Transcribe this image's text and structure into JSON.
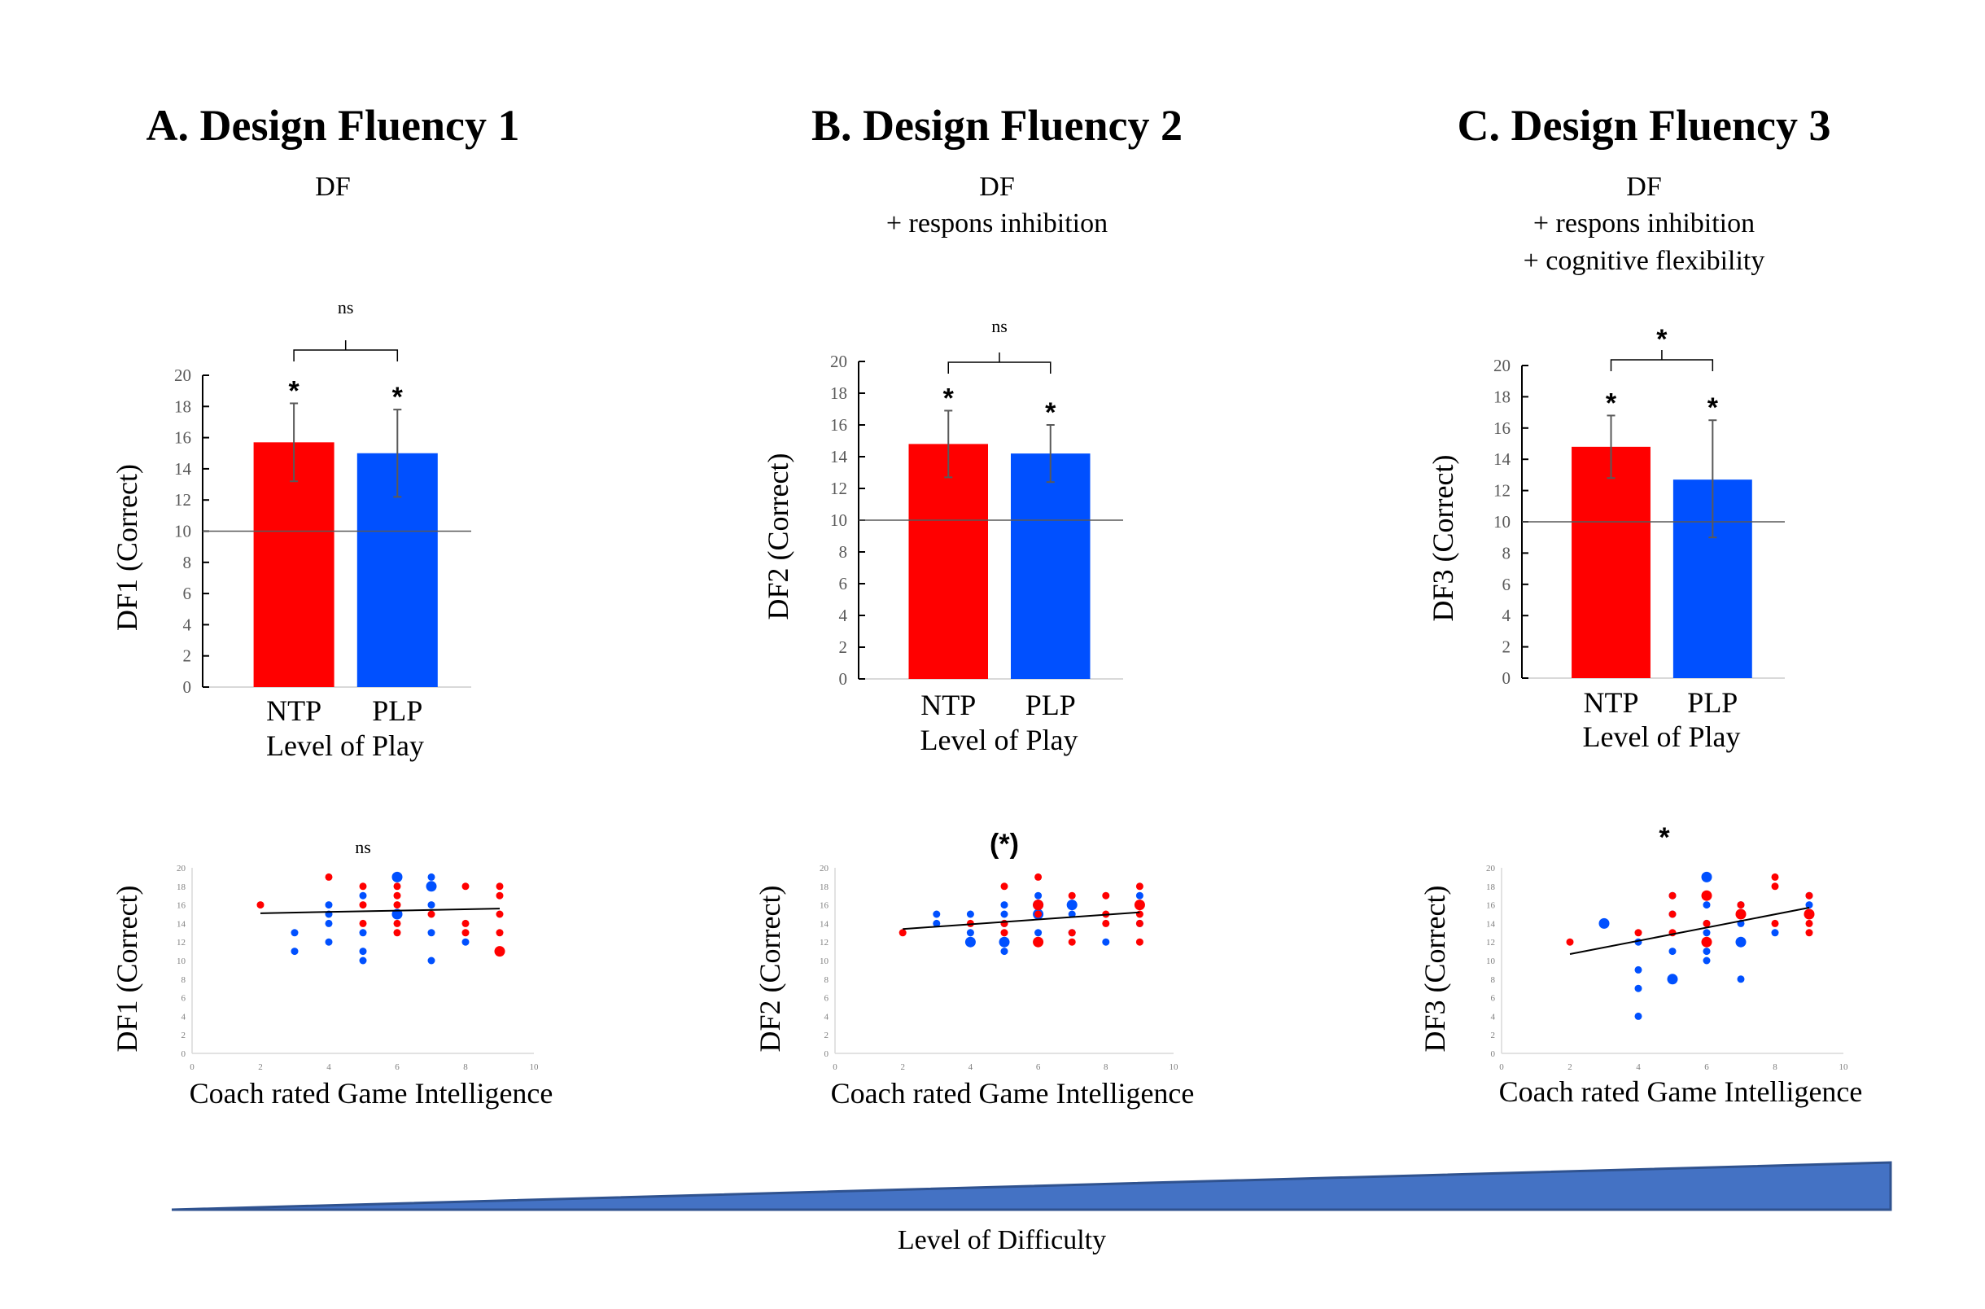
{
  "colors": {
    "ntp": "#ff0000",
    "plp": "#0050ff",
    "axis": "#000000",
    "error_bar": "#595959",
    "reference_line": "#595959",
    "trend_line": "#000000",
    "wedge_fill": "#4472c4",
    "wedge_stroke": "#2f528f"
  },
  "panels": [
    {
      "id": "A",
      "title": "A.  Design Fluency 1",
      "subtitle_lines": [
        "DF"
      ],
      "bar_significance": "ns",
      "scatter_significance": "ns"
    },
    {
      "id": "B",
      "title": "B. Design Fluency  2",
      "subtitle_lines": [
        "DF",
        "+ respons inhibition"
      ],
      "bar_significance": "ns",
      "scatter_significance": "(*)"
    },
    {
      "id": "C",
      "title": "C. Design Fluency 3",
      "subtitle_lines": [
        "DF",
        "+ respons inhibition",
        "+ cognitive flexibility"
      ],
      "bar_significance": "*",
      "scatter_significance": "*"
    }
  ],
  "difficulty_label": "Level of Difficulty",
  "chart_data": [
    {
      "type": "bar",
      "panel": "A",
      "title": "A.  Design Fluency 1",
      "categories": [
        "NTP",
        "PLP"
      ],
      "values": [
        15.7,
        15.0
      ],
      "error_low": [
        13.2,
        12.2
      ],
      "error_high": [
        18.2,
        17.8
      ],
      "bar_markers": [
        "*",
        "*"
      ],
      "comparison_label": "ns",
      "reference_line": 10,
      "xlabel": "Level of Play",
      "ylabel": "DF1 (Correct)",
      "ylim": [
        0,
        20
      ],
      "yticks": [
        0,
        2,
        4,
        6,
        8,
        10,
        12,
        14,
        16,
        18,
        20
      ]
    },
    {
      "type": "bar",
      "panel": "B",
      "title": "B. Design Fluency  2",
      "categories": [
        "NTP",
        "PLP"
      ],
      "values": [
        14.8,
        14.2
      ],
      "error_low": [
        12.7,
        12.4
      ],
      "error_high": [
        16.9,
        16.0
      ],
      "bar_markers": [
        "*",
        "*"
      ],
      "comparison_label": "ns",
      "reference_line": 10,
      "xlabel": "Level of Play",
      "ylabel": "DF2 (Correct)",
      "ylim": [
        0,
        20
      ],
      "yticks": [
        0,
        2,
        4,
        6,
        8,
        10,
        12,
        14,
        16,
        18,
        20
      ]
    },
    {
      "type": "bar",
      "panel": "C",
      "title": "C. Design Fluency 3",
      "categories": [
        "NTP",
        "PLP"
      ],
      "values": [
        14.8,
        12.7
      ],
      "error_low": [
        12.8,
        9.0
      ],
      "error_high": [
        16.8,
        16.5
      ],
      "bar_markers": [
        "*",
        "*"
      ],
      "comparison_label": "*",
      "reference_line": 10,
      "xlabel": "Level of Play",
      "ylabel": "DF3 (Correct)",
      "ylim": [
        0,
        20
      ],
      "yticks": [
        0,
        2,
        4,
        6,
        8,
        10,
        12,
        14,
        16,
        18,
        20
      ]
    },
    {
      "type": "scatter",
      "panel": "A",
      "significance": "ns",
      "xlabel": "Coach rated Game Intelligence",
      "ylabel": "DF1 (Correct)",
      "xlim": [
        0,
        10
      ],
      "ylim": [
        0,
        20
      ],
      "xticks": [
        0,
        2,
        4,
        6,
        8,
        10
      ],
      "yticks": [
        0,
        2,
        4,
        6,
        8,
        10,
        12,
        14,
        16,
        18,
        20
      ],
      "trend": {
        "x": [
          2,
          9
        ],
        "y": [
          15.1,
          15.6
        ]
      },
      "series": [
        {
          "name": "NTP",
          "color": "#ff0000",
          "points": [
            [
              2,
              16,
              1
            ],
            [
              4,
              19,
              1
            ],
            [
              5,
              18,
              1
            ],
            [
              5,
              16,
              1
            ],
            [
              5,
              14,
              1
            ],
            [
              6,
              19,
              1
            ],
            [
              6,
              18,
              1
            ],
            [
              6,
              17,
              1
            ],
            [
              6,
              16,
              1
            ],
            [
              6,
              14,
              1
            ],
            [
              6,
              13,
              1
            ],
            [
              7,
              18,
              1
            ],
            [
              7,
              15,
              1
            ],
            [
              8,
              18,
              1
            ],
            [
              8,
              14,
              1
            ],
            [
              8,
              13,
              1
            ],
            [
              9,
              18,
              1
            ],
            [
              9,
              17,
              1
            ],
            [
              9,
              15,
              1
            ],
            [
              9,
              13,
              1
            ],
            [
              9,
              11,
              2
            ]
          ]
        },
        {
          "name": "PLP",
          "color": "#0050ff",
          "points": [
            [
              3,
              13,
              1
            ],
            [
              3,
              11,
              1
            ],
            [
              4,
              16,
              1
            ],
            [
              4,
              15,
              1
            ],
            [
              4,
              14,
              1
            ],
            [
              4,
              12,
              1
            ],
            [
              5,
              17,
              1
            ],
            [
              5,
              13,
              1
            ],
            [
              5,
              11,
              1
            ],
            [
              5,
              10,
              1
            ],
            [
              6,
              19,
              2
            ],
            [
              6,
              15,
              2
            ],
            [
              7,
              19,
              1
            ],
            [
              7,
              18,
              2
            ],
            [
              7,
              16,
              1
            ],
            [
              7,
              13,
              1
            ],
            [
              7,
              10,
              1
            ],
            [
              8,
              12,
              1
            ]
          ]
        }
      ]
    },
    {
      "type": "scatter",
      "panel": "B",
      "significance": "(*)",
      "xlabel": "Coach rated Game Intelligence",
      "ylabel": "DF2 (Correct)",
      "xlim": [
        0,
        10
      ],
      "ylim": [
        0,
        20
      ],
      "xticks": [
        0,
        2,
        4,
        6,
        8,
        10
      ],
      "yticks": [
        0,
        2,
        4,
        6,
        8,
        10,
        12,
        14,
        16,
        18,
        20
      ],
      "trend": {
        "x": [
          2,
          9
        ],
        "y": [
          13.4,
          15.2
        ]
      },
      "series": [
        {
          "name": "PLP",
          "color": "#0050ff",
          "points": [
            [
              3,
              15,
              1
            ],
            [
              3,
              14,
              1
            ],
            [
              4,
              15,
              1
            ],
            [
              4,
              13,
              1
            ],
            [
              4,
              12,
              2
            ],
            [
              5,
              16,
              1
            ],
            [
              5,
              15,
              1
            ],
            [
              5,
              14,
              1
            ],
            [
              5,
              12,
              2
            ],
            [
              5,
              11,
              1
            ],
            [
              6,
              17,
              1
            ],
            [
              6,
              16,
              2
            ],
            [
              6,
              15,
              2
            ],
            [
              6,
              13,
              1
            ],
            [
              7,
              16,
              2
            ],
            [
              7,
              15,
              1
            ],
            [
              7,
              13,
              1
            ],
            [
              8,
              12,
              1
            ],
            [
              9,
              17,
              1
            ],
            [
              9,
              14,
              1
            ]
          ]
        },
        {
          "name": "NTP",
          "color": "#ff0000",
          "points": [
            [
              2,
              13,
              1
            ],
            [
              4,
              14,
              1
            ],
            [
              5,
              18,
              1
            ],
            [
              5,
              14,
              1
            ],
            [
              5,
              13,
              1
            ],
            [
              6,
              19,
              1
            ],
            [
              6,
              16,
              2
            ],
            [
              6,
              15,
              1
            ],
            [
              6,
              12,
              2
            ],
            [
              7,
              17,
              1
            ],
            [
              7,
              13,
              1
            ],
            [
              7,
              12,
              1
            ],
            [
              8,
              17,
              1
            ],
            [
              8,
              15,
              1
            ],
            [
              8,
              14,
              1
            ],
            [
              9,
              18,
              1
            ],
            [
              9,
              16,
              2
            ],
            [
              9,
              15,
              1
            ],
            [
              9,
              14,
              1
            ],
            [
              9,
              12,
              1
            ]
          ]
        }
      ]
    },
    {
      "type": "scatter",
      "panel": "C",
      "significance": "*",
      "xlabel": "Coach rated Game Intelligence",
      "ylabel": "DF3 (Correct)",
      "xlim": [
        0,
        10
      ],
      "ylim": [
        0,
        20
      ],
      "xticks": [
        0,
        2,
        4,
        6,
        8,
        10
      ],
      "yticks": [
        0,
        2,
        4,
        6,
        8,
        10,
        12,
        14,
        16,
        18,
        20
      ],
      "trend": {
        "x": [
          2,
          9
        ],
        "y": [
          10.7,
          15.7
        ]
      },
      "series": [
        {
          "name": "PLP",
          "color": "#0050ff",
          "points": [
            [
              3,
              14,
              2
            ],
            [
              4,
              12,
              1
            ],
            [
              4,
              9,
              1
            ],
            [
              4,
              7,
              1
            ],
            [
              4,
              4,
              1
            ],
            [
              5,
              17,
              1
            ],
            [
              5,
              15,
              1
            ],
            [
              5,
              11,
              1
            ],
            [
              5,
              8,
              2
            ],
            [
              6,
              19,
              2
            ],
            [
              6,
              17,
              1
            ],
            [
              6,
              16,
              1
            ],
            [
              6,
              14,
              1
            ],
            [
              6,
              13,
              1
            ],
            [
              6,
              12,
              1
            ],
            [
              6,
              11,
              1
            ],
            [
              6,
              10,
              1
            ],
            [
              7,
              16,
              1
            ],
            [
              7,
              14,
              1
            ],
            [
              7,
              12,
              2
            ],
            [
              7,
              8,
              1
            ],
            [
              8,
              13,
              1
            ],
            [
              9,
              17,
              1
            ],
            [
              9,
              16,
              1
            ]
          ]
        },
        {
          "name": "NTP",
          "color": "#ff0000",
          "points": [
            [
              2,
              12,
              1
            ],
            [
              4,
              13,
              1
            ],
            [
              5,
              17,
              1
            ],
            [
              5,
              15,
              1
            ],
            [
              5,
              13,
              1
            ],
            [
              6,
              17,
              2
            ],
            [
              6,
              14,
              1
            ],
            [
              6,
              12,
              2
            ],
            [
              7,
              16,
              1
            ],
            [
              7,
              15,
              2
            ],
            [
              8,
              19,
              1
            ],
            [
              8,
              18,
              1
            ],
            [
              8,
              14,
              1
            ],
            [
              9,
              17,
              1
            ],
            [
              9,
              15,
              2
            ],
            [
              9,
              14,
              1
            ],
            [
              9,
              13,
              1
            ]
          ]
        }
      ]
    }
  ]
}
